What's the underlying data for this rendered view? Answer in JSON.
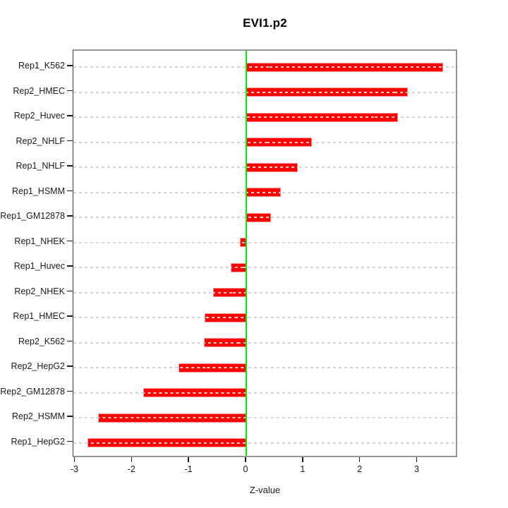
{
  "chart_data": {
    "type": "bar",
    "orientation": "horizontal",
    "title": "EVI1.p2",
    "xlabel": "Z-value",
    "ylabel": "",
    "categories": [
      "Rep1_K562",
      "Rep2_HMEC",
      "Rep2_Huvec",
      "Rep2_NHLF",
      "Rep1_NHLF",
      "Rep1_HSMM",
      "Rep1_GM12878",
      "Rep1_NHEK",
      "Rep1_Huvec",
      "Rep2_NHEK",
      "Rep1_HMEC",
      "Rep2_K562",
      "Rep2_HepG2",
      "Rep2_GM12878",
      "Rep2_HSMM",
      "Rep1_HepG2"
    ],
    "values": [
      3.45,
      2.83,
      2.66,
      1.15,
      0.9,
      0.61,
      0.43,
      -0.11,
      -0.27,
      -0.58,
      -0.73,
      -0.74,
      -1.19,
      -1.81,
      -2.6,
      -2.78
    ],
    "xticks": [
      -3,
      -2,
      -1,
      0,
      1,
      2,
      3
    ],
    "xlim": [
      -3.03,
      3.71
    ],
    "grid": true,
    "gridline_style": "dashed",
    "legend": false,
    "zero_reference_line": 0,
    "colors": {
      "bar_fill": "#ff0000",
      "bar_border": "#ff9494",
      "zero_line": "#00ef00",
      "gridline": "#d4d4d4",
      "box": "#969696",
      "axis_text": "#1a1a1a",
      "background": "#ffffff"
    }
  }
}
